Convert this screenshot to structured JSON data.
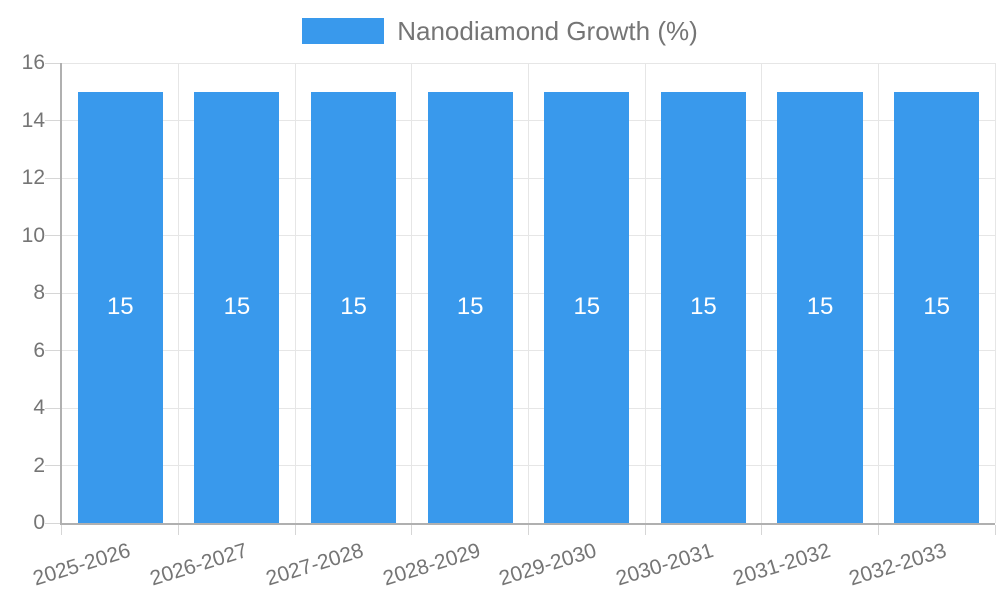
{
  "chart_data": {
    "type": "bar",
    "categories": [
      "2025-2026",
      "2026-2027",
      "2027-2028",
      "2028-2029",
      "2029-2030",
      "2030-2031",
      "2031-2032",
      "2032-2033"
    ],
    "series": [
      {
        "name": "Nanodiamond Growth (%)",
        "values": [
          15,
          15,
          15,
          15,
          15,
          15,
          15,
          15
        ]
      }
    ],
    "bar_value_labels": [
      "15",
      "15",
      "15",
      "15",
      "15",
      "15",
      "15",
      "15"
    ],
    "ylim": [
      0,
      16
    ],
    "yticks": [
      0,
      2,
      4,
      6,
      8,
      10,
      12,
      14,
      16
    ],
    "xlabel": "",
    "ylabel": "",
    "grid": true,
    "legend_position": "top-center",
    "x_label_rotation_deg": -17,
    "colors": {
      "bar": "#3999EC",
      "bar_label": "#ffffff",
      "axis_text": "#757575",
      "legend_text": "#757575",
      "grid_line": "#e6e6e6",
      "tick_line": "#d6d6d6",
      "axis_line": "#b0b0b0",
      "background": "#ffffff"
    }
  }
}
